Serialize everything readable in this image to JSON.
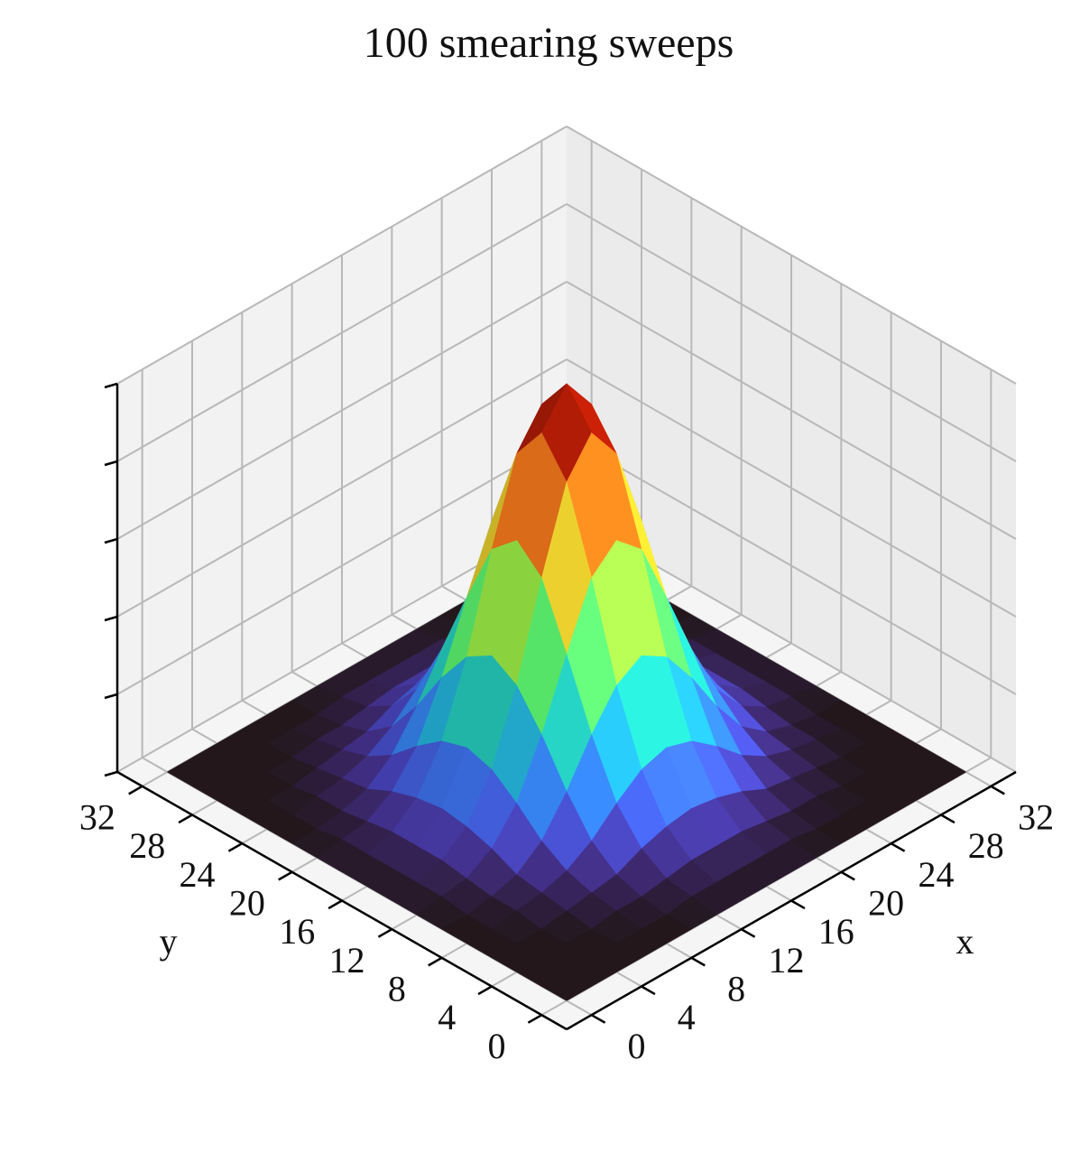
{
  "chart_data": {
    "type": "surface",
    "title": "100 smearing sweeps",
    "xlabel": "x",
    "ylabel": "y",
    "x": [
      0,
      2,
      4,
      6,
      8,
      10,
      12,
      14,
      16,
      18,
      20,
      22,
      24,
      26,
      28,
      30,
      32
    ],
    "y": [
      0,
      2,
      4,
      6,
      8,
      10,
      12,
      14,
      16,
      18,
      20,
      22,
      24,
      26,
      28,
      30,
      32
    ],
    "z": [
      [
        0,
        0,
        0,
        0,
        0,
        0,
        0,
        0,
        0,
        0,
        0,
        0,
        0,
        0,
        0,
        0,
        0
      ],
      [
        0,
        0,
        0,
        0,
        0,
        0,
        0.01,
        0.01,
        0.01,
        0.01,
        0.01,
        0,
        0,
        0,
        0,
        0,
        0
      ],
      [
        0,
        0,
        0,
        0,
        0.01,
        0.01,
        0.02,
        0.03,
        0.03,
        0.03,
        0.02,
        0.01,
        0.01,
        0,
        0,
        0,
        0
      ],
      [
        0,
        0,
        0,
        0.01,
        0.02,
        0.03,
        0.06,
        0.08,
        0.09,
        0.08,
        0.06,
        0.03,
        0.02,
        0.01,
        0,
        0,
        0
      ],
      [
        0,
        0,
        0.01,
        0.02,
        0.04,
        0.08,
        0.14,
        0.19,
        0.21,
        0.19,
        0.14,
        0.08,
        0.04,
        0.02,
        0.01,
        0,
        0
      ],
      [
        0,
        0,
        0.01,
        0.03,
        0.08,
        0.17,
        0.28,
        0.37,
        0.41,
        0.37,
        0.28,
        0.17,
        0.08,
        0.03,
        0.01,
        0,
        0
      ],
      [
        0,
        0.01,
        0.02,
        0.06,
        0.14,
        0.28,
        0.45,
        0.61,
        0.67,
        0.61,
        0.45,
        0.28,
        0.14,
        0.06,
        0.02,
        0.01,
        0
      ],
      [
        0,
        0.01,
        0.03,
        0.08,
        0.19,
        0.37,
        0.61,
        0.82,
        0.91,
        0.82,
        0.61,
        0.37,
        0.19,
        0.08,
        0.03,
        0.01,
        0
      ],
      [
        0,
        0.01,
        0.03,
        0.09,
        0.21,
        0.41,
        0.67,
        0.91,
        1,
        0.91,
        0.67,
        0.41,
        0.21,
        0.09,
        0.03,
        0.01,
        0
      ],
      [
        0,
        0.01,
        0.03,
        0.08,
        0.19,
        0.37,
        0.61,
        0.82,
        0.91,
        0.82,
        0.61,
        0.37,
        0.19,
        0.08,
        0.03,
        0.01,
        0
      ],
      [
        0,
        0.01,
        0.02,
        0.06,
        0.14,
        0.28,
        0.45,
        0.61,
        0.67,
        0.61,
        0.45,
        0.28,
        0.14,
        0.06,
        0.02,
        0.01,
        0
      ],
      [
        0,
        0,
        0.01,
        0.03,
        0.08,
        0.17,
        0.28,
        0.37,
        0.41,
        0.37,
        0.28,
        0.17,
        0.08,
        0.03,
        0.01,
        0,
        0
      ],
      [
        0,
        0,
        0.01,
        0.02,
        0.04,
        0.08,
        0.14,
        0.19,
        0.21,
        0.19,
        0.14,
        0.08,
        0.04,
        0.02,
        0.01,
        0,
        0
      ],
      [
        0,
        0,
        0,
        0.01,
        0.02,
        0.03,
        0.06,
        0.08,
        0.09,
        0.08,
        0.06,
        0.03,
        0.02,
        0.01,
        0,
        0,
        0
      ],
      [
        0,
        0,
        0,
        0,
        0.01,
        0.01,
        0.02,
        0.03,
        0.03,
        0.03,
        0.02,
        0.01,
        0.01,
        0,
        0,
        0,
        0
      ],
      [
        0,
        0,
        0,
        0,
        0,
        0,
        0.01,
        0.01,
        0.01,
        0.01,
        0.01,
        0,
        0,
        0,
        0,
        0,
        0
      ],
      [
        0,
        0,
        0,
        0,
        0,
        0,
        0,
        0,
        0,
        0,
        0,
        0,
        0,
        0,
        0,
        0,
        0
      ]
    ],
    "xlim": [
      -2,
      34
    ],
    "ylim": [
      -2,
      34
    ],
    "zlim": [
      0,
      1
    ],
    "xticks": [
      0,
      4,
      8,
      12,
      16,
      20,
      24,
      28,
      32
    ],
    "yticks": [
      0,
      4,
      8,
      12,
      16,
      20,
      24,
      28,
      32
    ],
    "zticks": [
      0,
      0.2,
      0.4,
      0.6,
      0.8,
      1
    ],
    "colormap": "turbo",
    "grid": true
  }
}
